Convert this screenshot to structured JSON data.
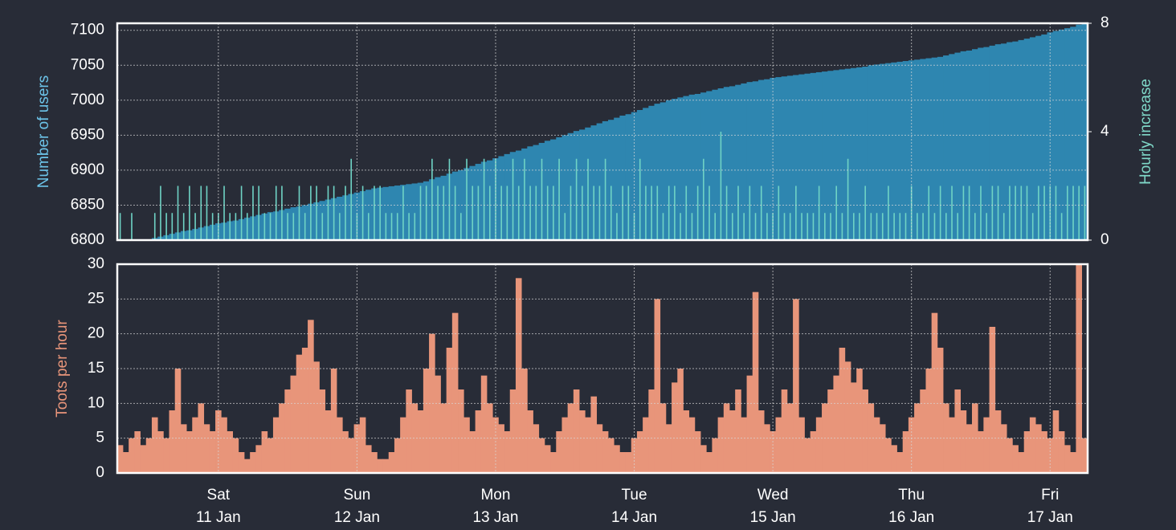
{
  "chart_data": [
    {
      "type": "bar",
      "ylabel": "Number of users",
      "y2label": "Hourly increase",
      "ylim": [
        6800,
        7110
      ],
      "yticks": [
        6800,
        6850,
        6900,
        6950,
        7000,
        7050,
        7100
      ],
      "y2lim": [
        0,
        8
      ],
      "y2ticks": [
        0,
        4,
        8
      ],
      "grid": true,
      "series": [
        {
          "color": "#2e86b0",
          "values": [
            6801,
            6801,
            6801,
            6801,
            6801,
            6801,
            6803,
            6805,
            6807,
            6809,
            6811,
            6813,
            6814,
            6816,
            6818,
            6820,
            6822,
            6824,
            6825,
            6827,
            6828,
            6830,
            6832,
            6834,
            6836,
            6838,
            6840,
            6841,
            6843,
            6845,
            6847,
            6848,
            6850,
            6852,
            6854,
            6856,
            6858,
            6860,
            6862,
            6864,
            6866,
            6868,
            6870,
            6872,
            6874,
            6875,
            6876,
            6877,
            6878,
            6879,
            6880,
            6881,
            6882,
            6884,
            6887,
            6890,
            6892,
            6895,
            6898,
            6900,
            6903,
            6906,
            6909,
            6912,
            6914,
            6917,
            6920,
            6923,
            6926,
            6928,
            6931,
            6934,
            6936,
            6939,
            6942,
            6944,
            6947,
            6950,
            6953,
            6956,
            6958,
            6961,
            6964,
            6967,
            6970,
            6972,
            6975,
            6978,
            6980,
            6983,
            6986,
            6989,
            6992,
            6995,
            6997,
            7000,
            7002,
            7004,
            7006,
            7008,
            7009,
            7011,
            7013,
            7015,
            7017,
            7019,
            7020,
            7022,
            7024,
            7026,
            7027,
            7029,
            7030,
            7032,
            7033,
            7034,
            7035,
            7036,
            7037,
            7038,
            7039,
            7040,
            7041,
            7042,
            7043,
            7044,
            7045,
            7046,
            7047,
            7048,
            7050,
            7051,
            7052,
            7053,
            7054,
            7055,
            7056,
            7057,
            7058,
            7059,
            7060,
            7061,
            7062,
            7064,
            7066,
            7068,
            7070,
            7071,
            7073,
            7075,
            7076,
            7078,
            7080,
            7081,
            7083,
            7084,
            7086,
            7088,
            7090,
            7092,
            7094,
            7097,
            7099,
            7101,
            7103,
            7105,
            7108,
            7110
          ]
        },
        {
          "color": "#6fd3c5",
          "axis": "y2",
          "values": [
            1,
            0,
            1,
            0,
            0,
            0,
            1,
            2,
            1,
            1,
            2,
            1,
            2,
            1,
            2,
            2,
            1,
            1,
            2,
            1,
            1,
            2,
            1,
            2,
            2,
            1,
            1,
            2,
            2,
            1,
            1,
            2,
            1,
            2,
            2,
            1,
            2,
            2,
            1,
            2,
            3,
            1,
            2,
            1,
            2,
            2,
            1,
            1,
            1,
            2,
            1,
            1,
            2,
            2,
            3,
            2,
            2,
            3,
            2,
            1,
            3,
            2,
            2,
            3,
            2,
            3,
            2,
            2,
            3,
            2,
            3,
            2,
            2,
            3,
            2,
            2,
            3,
            1,
            2,
            3,
            2,
            3,
            2,
            2,
            3,
            2,
            1,
            2,
            2,
            1,
            3,
            2,
            2,
            2,
            1,
            2,
            2,
            1,
            2,
            1,
            2,
            3,
            2,
            1,
            4,
            2,
            1,
            2,
            1,
            2,
            1,
            2,
            1,
            1,
            2,
            1,
            1,
            2,
            1,
            1,
            1,
            2,
            1,
            1,
            2,
            1,
            3,
            1,
            1,
            2,
            1,
            1,
            1,
            2,
            1,
            1,
            1,
            2,
            1,
            1,
            2,
            1,
            2,
            1,
            2,
            1,
            2,
            2,
            1,
            2,
            1,
            2,
            2,
            1,
            2,
            2,
            2,
            2,
            1,
            2,
            2,
            2,
            2,
            1,
            2,
            2,
            2,
            2
          ]
        }
      ]
    },
    {
      "type": "bar",
      "ylabel": "Toots per hour",
      "ylim": [
        0,
        30
      ],
      "yticks": [
        0,
        5,
        10,
        15,
        20,
        25,
        30
      ],
      "grid": true,
      "categories": [
        null,
        null,
        null,
        null,
        null,
        null,
        null,
        null,
        null,
        null,
        null,
        null,
        null,
        null,
        null,
        null,
        null,
        "Sat\n11 Jan",
        null,
        null,
        null,
        null,
        null,
        null,
        null,
        null,
        null,
        null,
        null,
        null,
        null,
        null,
        null,
        null,
        null,
        null,
        null,
        null,
        null,
        null,
        null,
        "Sun\n12 Jan",
        null,
        null,
        null,
        null,
        null,
        null,
        null,
        null,
        null,
        null,
        null,
        null,
        null,
        null,
        null,
        null,
        null,
        null,
        null,
        null,
        null,
        null,
        null,
        "Mon\n13 Jan",
        null,
        null,
        null,
        null,
        null,
        null,
        null,
        null,
        null,
        null,
        null,
        null,
        null,
        null,
        null,
        null,
        null,
        null,
        null,
        null,
        null,
        null,
        null,
        "Tue\n14 Jan",
        null,
        null,
        null,
        null,
        null,
        null,
        null,
        null,
        null,
        null,
        null,
        null,
        null,
        null,
        null,
        null,
        null,
        null,
        null,
        null,
        null,
        null,
        null,
        "Wed\n15 Jan",
        null,
        null,
        null,
        null,
        null,
        null,
        null,
        null,
        null,
        null,
        null,
        null,
        null,
        null,
        null,
        null,
        null,
        null,
        null,
        null,
        null,
        null,
        null,
        "Thu\n16 Jan",
        null,
        null,
        null,
        null,
        null,
        null,
        null,
        null,
        null,
        null,
        null,
        null,
        null,
        null,
        null,
        null,
        null,
        null,
        null,
        null,
        null,
        null,
        null,
        "Fri\n17 Jan",
        null,
        null,
        null,
        null,
        null,
        null
      ],
      "series": [
        {
          "color": "#e8957a",
          "values": [
            4,
            3,
            5,
            6,
            4,
            5,
            8,
            6,
            5,
            9,
            15,
            7,
            6,
            8,
            10,
            7,
            6,
            9,
            8,
            6,
            5,
            3,
            2,
            3,
            4,
            6,
            5,
            8,
            10,
            12,
            14,
            17,
            18,
            22,
            16,
            12,
            9,
            15,
            8,
            6,
            5,
            7,
            8,
            4,
            3,
            2,
            2,
            3,
            5,
            8,
            12,
            10,
            9,
            15,
            20,
            14,
            10,
            18,
            23,
            12,
            8,
            6,
            9,
            14,
            10,
            8,
            7,
            6,
            12,
            28,
            15,
            9,
            7,
            5,
            4,
            3,
            6,
            8,
            10,
            12,
            9,
            8,
            11,
            7,
            6,
            5,
            4,
            3,
            3,
            5,
            6,
            8,
            12,
            25,
            10,
            7,
            13,
            15,
            9,
            8,
            6,
            4,
            3,
            5,
            8,
            10,
            9,
            12,
            8,
            14,
            26,
            9,
            7,
            6,
            8,
            12,
            10,
            25,
            8,
            5,
            6,
            8,
            10,
            12,
            14,
            18,
            16,
            13,
            15,
            12,
            10,
            8,
            7,
            5,
            4,
            3,
            6,
            8,
            10,
            12,
            15,
            23,
            18,
            10,
            8,
            12,
            9,
            7,
            10,
            6,
            8,
            21,
            9,
            7,
            5,
            4,
            3,
            6,
            8,
            7,
            6,
            5,
            9,
            6,
            4,
            3,
            30,
            5
          ]
        }
      ]
    }
  ]
}
